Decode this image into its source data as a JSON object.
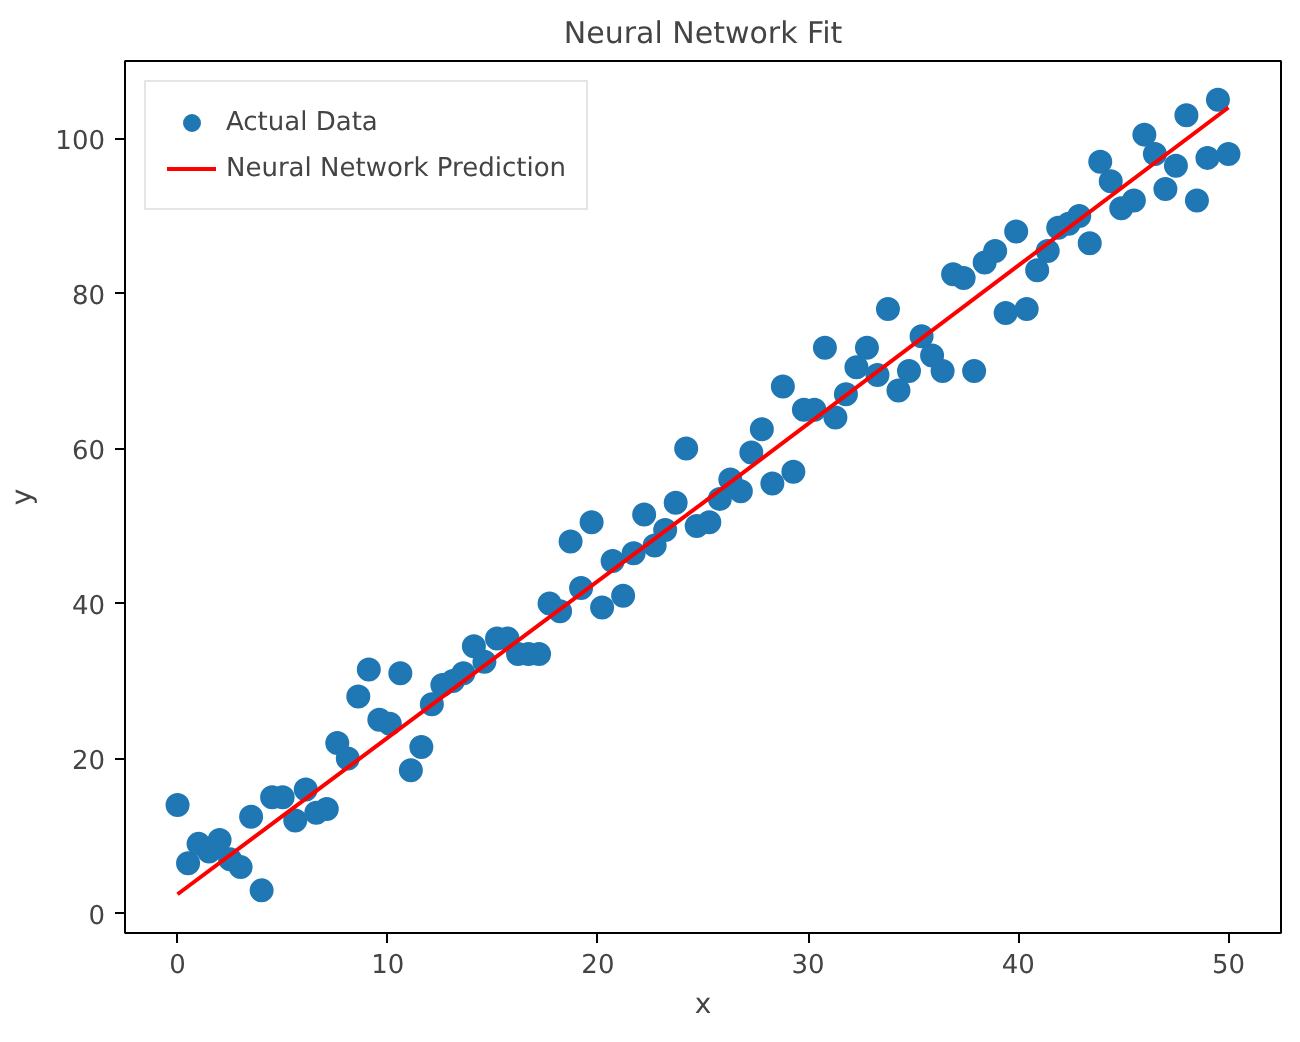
{
  "chart_data": {
    "type": "scatter",
    "title": "Neural Network Fit",
    "xlabel": "x",
    "ylabel": "y",
    "xlim": [
      -2.5,
      52.5
    ],
    "ylim": [
      -2.5,
      110
    ],
    "xticks": [
      0,
      10,
      20,
      30,
      40,
      50
    ],
    "yticks": [
      0,
      20,
      40,
      60,
      80,
      100
    ],
    "grid": false,
    "legend": "top left",
    "series": [
      {
        "name": "Actual Data",
        "marker": "circle",
        "color": "#1f77b4",
        "x": [
          0,
          0.5,
          1,
          1.5,
          2,
          2.5,
          3,
          3.5,
          4,
          4.5,
          5,
          5.6,
          6.1,
          6.6,
          7.1,
          7.6,
          8.1,
          8.6,
          9.1,
          9.6,
          10.1,
          10.6,
          11.1,
          11.6,
          12.1,
          12.6,
          13.1,
          13.6,
          14.1,
          14.6,
          15.2,
          15.7,
          16.2,
          16.7,
          17.2,
          17.7,
          18.2,
          18.7,
          19.2,
          19.7,
          20.2,
          20.7,
          21.2,
          21.7,
          22.2,
          22.7,
          23.2,
          23.7,
          24.2,
          24.7,
          25.3,
          25.8,
          26.3,
          26.8,
          27.3,
          27.8,
          28.3,
          28.8,
          29.3,
          29.8,
          30.3,
          30.8,
          31.3,
          31.8,
          32.3,
          32.8,
          33.3,
          33.8,
          34.3,
          34.8,
          35.4,
          35.9,
          36.4,
          36.9,
          37.4,
          37.9,
          38.4,
          38.9,
          39.4,
          39.9,
          40.4,
          40.9,
          41.4,
          41.9,
          42.4,
          42.9,
          43.4,
          43.9,
          44.4,
          44.9,
          45.5,
          46,
          46.5,
          47,
          47.5,
          48,
          48.5,
          49,
          49.5,
          50
        ],
        "values": [
          14,
          6.5,
          9,
          8,
          9.5,
          7,
          6,
          12.5,
          3,
          15,
          15,
          12,
          16,
          13,
          13.5,
          22,
          20,
          28,
          31.5,
          25,
          24.5,
          31,
          18.5,
          21.5,
          27,
          29.5,
          30,
          31,
          34.5,
          32.5,
          35.5,
          35.5,
          33.5,
          33.5,
          33.5,
          40,
          39,
          48,
          42,
          50.5,
          39.5,
          45.5,
          41,
          46.5,
          51.5,
          47.5,
          49.5,
          53,
          60,
          50,
          50.5,
          53.5,
          56,
          54.5,
          59.5,
          62.5,
          55.5,
          68,
          57,
          65,
          65,
          73,
          64,
          67,
          70.5,
          73,
          69.5,
          78,
          67.5,
          70,
          74.5,
          72,
          70,
          82.5,
          82,
          70,
          84,
          85.5,
          77.5,
          88,
          78,
          83,
          85.5,
          88.5,
          89,
          90,
          86.5,
          97,
          94.5,
          91,
          92,
          100.5,
          98,
          93.5,
          96.5,
          103,
          92,
          97.5,
          105,
          98
        ]
      },
      {
        "name": "Neural Network Prediction",
        "type": "line",
        "color": "#ff0000",
        "line_style": "solid",
        "x": [
          0,
          25,
          50
        ],
        "values": [
          2.5,
          53,
          104
        ]
      }
    ]
  }
}
